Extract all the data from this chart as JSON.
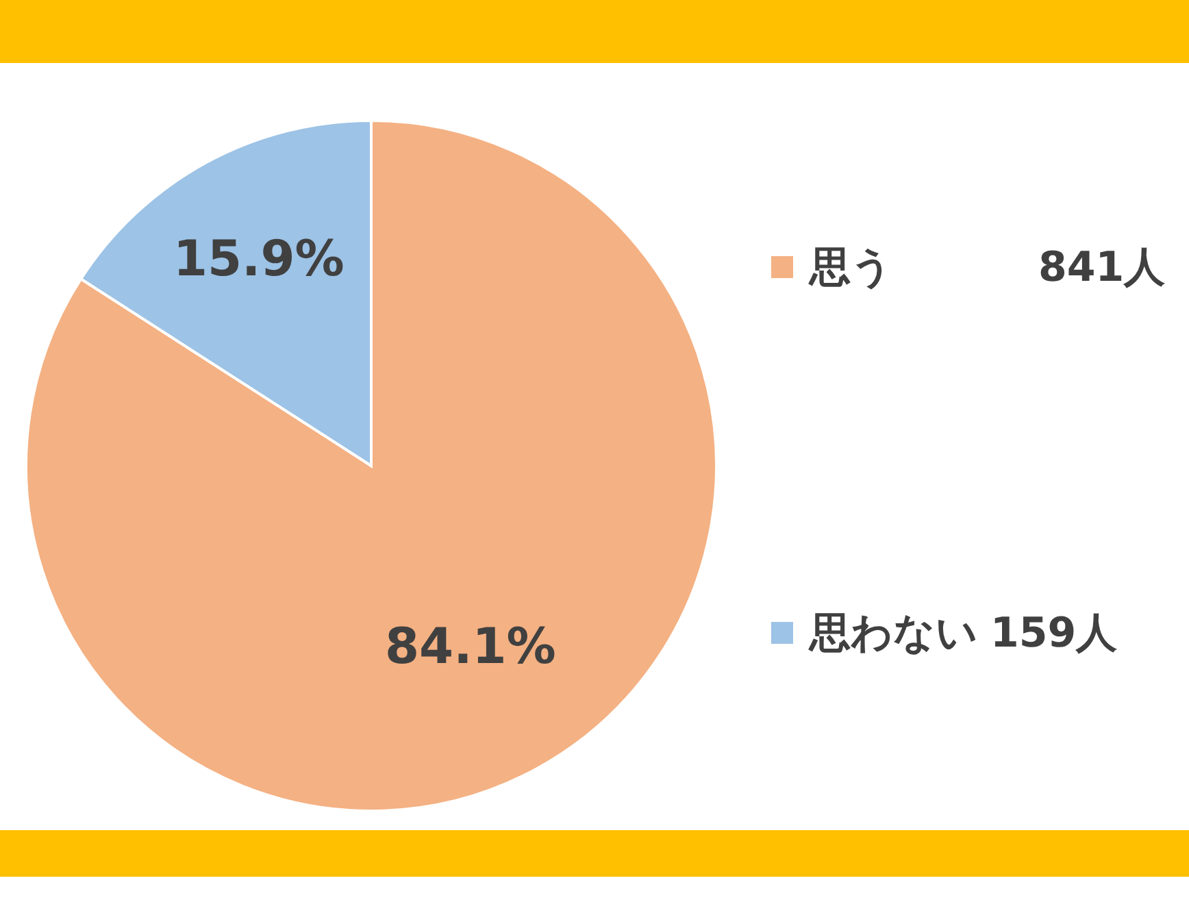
{
  "chart_data": {
    "type": "pie",
    "categories": [
      "思う",
      "思わない"
    ],
    "values": [
      84.1,
      15.9
    ],
    "colors": [
      "#f4b183",
      "#9dc3e6"
    ],
    "value_labels": [
      "84.1%",
      "15.9%"
    ],
    "annotations": [
      "841人",
      "159人"
    ],
    "legend": "right"
  }
}
